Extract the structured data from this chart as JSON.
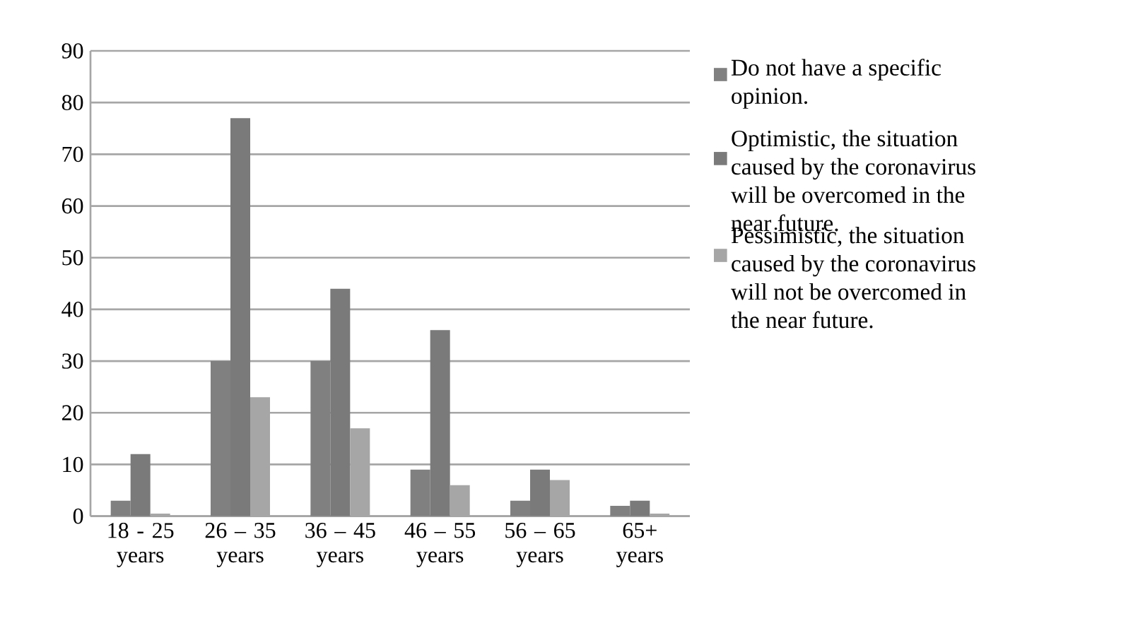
{
  "chart_data": {
    "type": "bar",
    "categories": [
      "18 - 25 years",
      "26 – 35 years",
      "36 – 45 years",
      "46 – 55 years",
      "56 – 65 years",
      "65+ years"
    ],
    "series": [
      {
        "name": "Do not have a specific opinion.",
        "color": "#808080",
        "values": [
          3,
          30,
          30,
          9,
          3,
          2
        ]
      },
      {
        "name": "Optimistic, the situation caused by the coronavirus will be overcomed in the near future.",
        "color": "#7a7a7a",
        "values": [
          12,
          77,
          44,
          36,
          9,
          3
        ]
      },
      {
        "name": "Pessimistic, the situation caused by the coronavirus will not be overcomed in the near future.",
        "color": "#a6a6a6",
        "values": [
          0.5,
          23,
          17,
          6,
          7,
          0.5
        ]
      }
    ],
    "ylim": [
      0,
      90
    ],
    "yticks": [
      0,
      10,
      20,
      30,
      40,
      50,
      60,
      70,
      80,
      90
    ],
    "grid": "y",
    "legend": "right"
  }
}
